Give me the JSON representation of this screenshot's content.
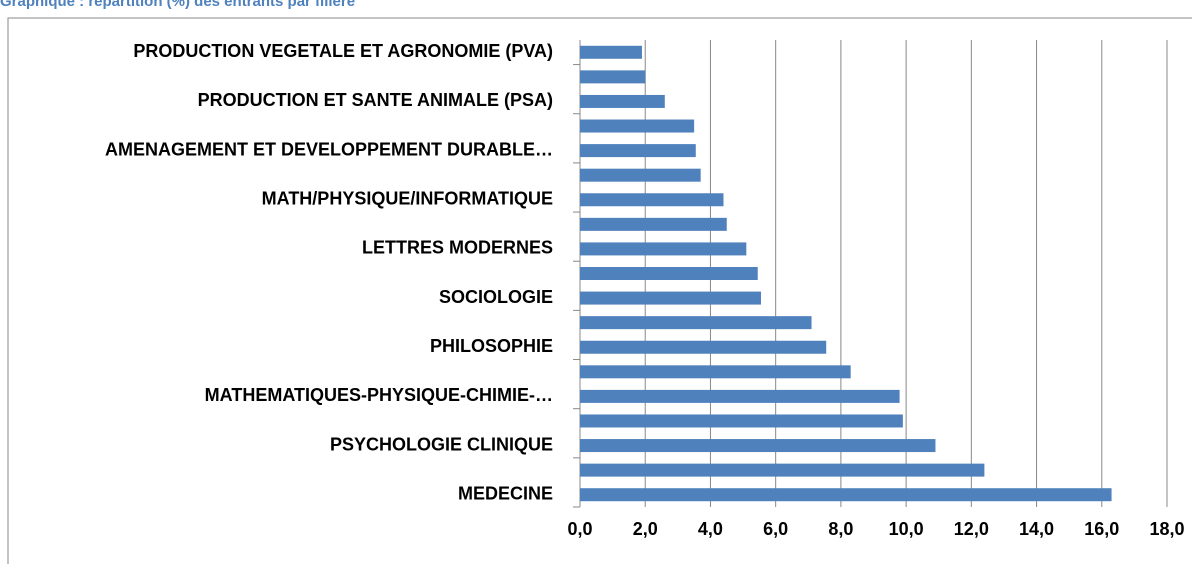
{
  "chart_data": {
    "type": "hbar",
    "title": "Graphique : répartition (%) des entrants par filière",
    "categories": [
      "PRODUCTION VEGETALE ET AGRONOMIE (PVA)",
      null,
      "PRODUCTION ET SANTE ANIMALE (PSA)",
      null,
      "AMENAGEMENT ET DEVELOPPEMENT DURABLE…",
      null,
      "MATH/PHYSIQUE/INFORMATIQUE",
      null,
      "LETTRES MODERNES",
      null,
      "SOCIOLOGIE",
      null,
      "PHILOSOPHIE",
      null,
      "MATHEMATIQUES-PHYSIQUE-CHIMIE-…",
      null,
      "PSYCHOLOGIE CLINIQUE",
      null,
      "MEDECINE"
    ],
    "values": [
      1.9,
      2.0,
      2.6,
      3.5,
      3.55,
      3.7,
      4.4,
      4.5,
      5.1,
      5.45,
      5.55,
      7.1,
      7.55,
      8.3,
      9.8,
      9.9,
      10.9,
      12.4,
      16.3
    ],
    "color": "#4f81bd",
    "xlim": [
      0,
      18
    ],
    "xticks": [
      {
        "value": 0,
        "label": "0,0"
      },
      {
        "value": 2,
        "label": "2,0"
      },
      {
        "value": 4,
        "label": "4,0"
      },
      {
        "value": 6,
        "label": "6,0"
      },
      {
        "value": 8,
        "label": "8,0"
      },
      {
        "value": 10,
        "label": "10,0"
      },
      {
        "value": 12,
        "label": "12,0"
      },
      {
        "value": 14,
        "label": "14,0"
      },
      {
        "value": 16,
        "label": "16,0"
      },
      {
        "value": 18,
        "label": "18,0"
      }
    ],
    "grid": true
  }
}
